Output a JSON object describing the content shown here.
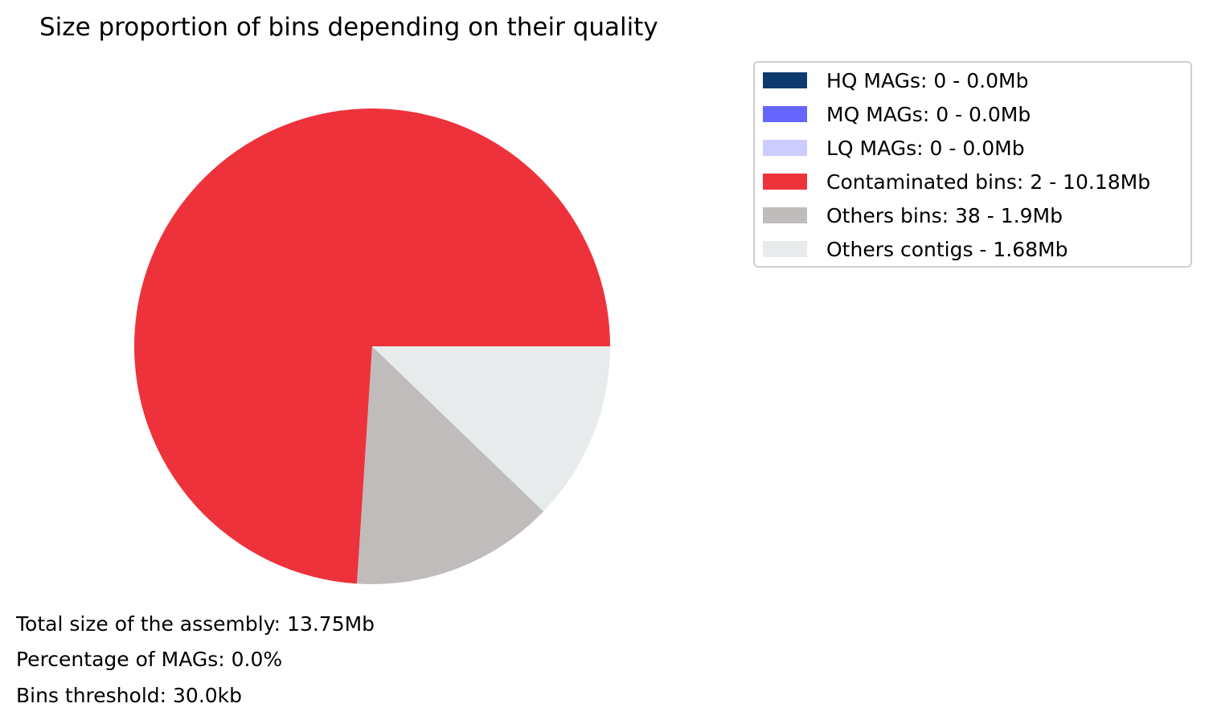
{
  "chart_data": {
    "type": "pie",
    "title": "Size proportion of bins depending on their quality",
    "categories": [
      "HQ MAGs: 0 - 0.0Mb",
      "MQ MAGs: 0 - 0.0Mb",
      "LQ MAGs: 0 - 0.0Mb",
      "Contaminated bins: 2 - 10.18Mb",
      "Others bins: 38 - 1.9Mb",
      "Others contigs - 1.68Mb"
    ],
    "values": [
      0.0,
      0.0,
      0.0,
      10.18,
      1.9,
      1.68
    ],
    "unit": "Mb",
    "colors": [
      "#0f3a6e",
      "#6666ff",
      "#ccccff",
      "#ee323b",
      "#c0bcbb",
      "#e7ebec"
    ],
    "legend_position": "top-right, outside",
    "start_angle_deg": 0,
    "direction": "counterclockwise"
  },
  "footnotes": [
    "Total size of the assembly: 13.75Mb",
    "Percentage of MAGs: 0.0%",
    "Bins threshold: 30.0kb"
  ]
}
